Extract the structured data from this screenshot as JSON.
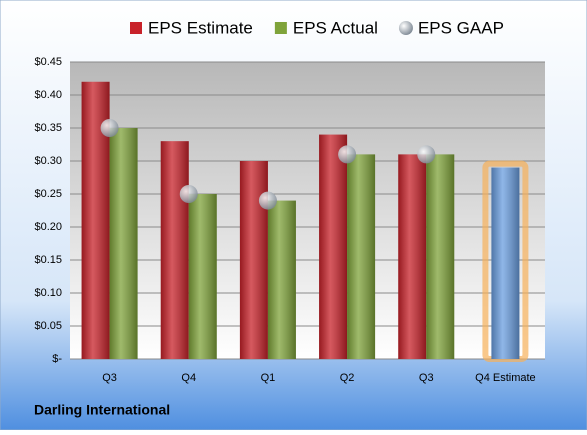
{
  "chart_data": {
    "type": "bar",
    "categories": [
      "Q3",
      "Q4",
      "Q1",
      "Q2",
      "Q3",
      "Q4 Estimate"
    ],
    "series": [
      {
        "name": "EPS Estimate",
        "color": "#c8222a",
        "values": [
          0.42,
          0.33,
          0.3,
          0.34,
          0.31,
          0.29
        ],
        "point_colors": [
          "#c8222a",
          "#c8222a",
          "#c8222a",
          "#c8222a",
          "#c8222a",
          "#6a9ee0"
        ]
      },
      {
        "name": "EPS Actual",
        "color": "#7fa33a",
        "values": [
          0.35,
          0.25,
          0.24,
          0.31,
          0.31,
          null
        ]
      },
      {
        "name": "EPS GAAP",
        "color": "#a9b3bd",
        "marker": "circle",
        "values": [
          0.35,
          0.25,
          0.24,
          0.31,
          0.31,
          null
        ]
      }
    ],
    "ylim": [
      0,
      0.45
    ],
    "yticks": [
      {
        "value": 0,
        "label": "$-"
      },
      {
        "value": 0.05,
        "label": "$0.05"
      },
      {
        "value": 0.1,
        "label": "$0.10"
      },
      {
        "value": 0.15,
        "label": "$0.15"
      },
      {
        "value": 0.2,
        "label": "$0.20"
      },
      {
        "value": 0.25,
        "label": "$0.25"
      },
      {
        "value": 0.3,
        "label": "$0.30"
      },
      {
        "value": 0.35,
        "label": "$0.35"
      },
      {
        "value": 0.4,
        "label": "$0.40"
      },
      {
        "value": 0.45,
        "label": "$0.45"
      }
    ],
    "grid": true,
    "legend": "top",
    "caption": "Darling International"
  }
}
